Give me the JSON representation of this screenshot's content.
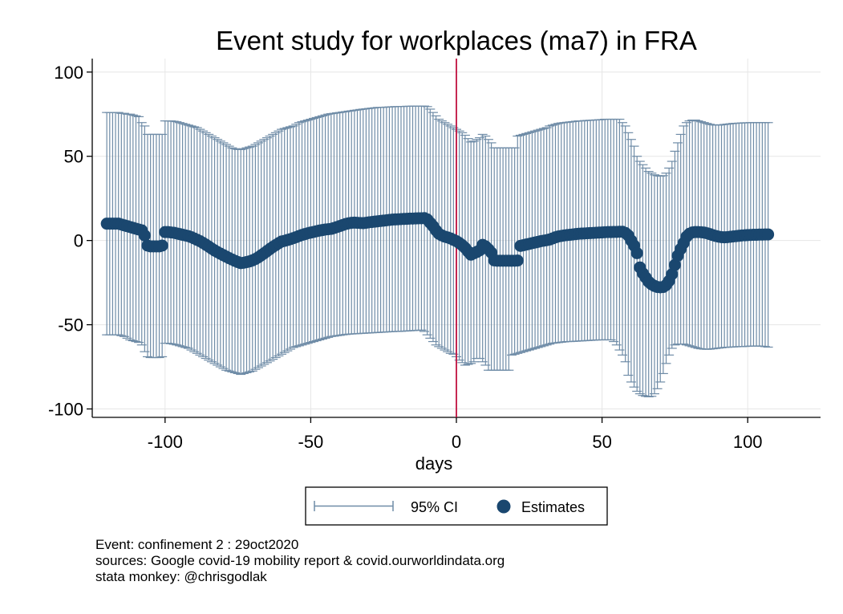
{
  "chart_data": {
    "type": "scatter",
    "title": "Event study for workplaces (ma7) in FRA",
    "xlabel": "days",
    "ylabel": "",
    "xlim": [
      -125,
      125
    ],
    "ylim": [
      -105,
      108
    ],
    "x_ticks": [
      -100,
      -50,
      0,
      50,
      100
    ],
    "x_tick_labels": [
      "-100",
      "-50",
      "0",
      "50",
      "100"
    ],
    "y_ticks": [
      -100,
      -50,
      0,
      50,
      100
    ],
    "y_tick_labels": [
      "-100",
      "-50",
      "0",
      "50",
      "100"
    ],
    "grid": true,
    "event_line_x": 0,
    "legend_position": "bottom",
    "legend": [
      {
        "label": "95% CI",
        "kind": "capped-spike",
        "color": "#6f8ca7"
      },
      {
        "label": "Estimates",
        "kind": "dot",
        "color": "#1a476f"
      }
    ],
    "colors": {
      "estimates": "#1a476f",
      "ci": "#6f8ca7",
      "event_line": "#c0103f",
      "grid": "#e6e6e6"
    },
    "x": [
      -120,
      -119,
      -118,
      -117,
      -116,
      -115,
      -114,
      -113,
      -112,
      -111,
      -110,
      -109,
      -108,
      -107,
      -106,
      -105,
      -104,
      -103,
      -102,
      -101,
      -100,
      -99,
      -98,
      -97,
      -96,
      -95,
      -94,
      -93,
      -92,
      -91,
      -90,
      -89,
      -88,
      -87,
      -86,
      -85,
      -84,
      -83,
      -82,
      -81,
      -80,
      -79,
      -78,
      -77,
      -76,
      -75,
      -74,
      -73,
      -72,
      -71,
      -70,
      -69,
      -68,
      -67,
      -66,
      -65,
      -64,
      -63,
      -62,
      -61,
      -60,
      -59,
      -58,
      -57,
      -56,
      -55,
      -54,
      -53,
      -52,
      -51,
      -50,
      -49,
      -48,
      -47,
      -46,
      -45,
      -44,
      -43,
      -42,
      -41,
      -40,
      -39,
      -38,
      -37,
      -36,
      -35,
      -34,
      -33,
      -32,
      -31,
      -30,
      -29,
      -28,
      -27,
      -26,
      -25,
      -24,
      -23,
      -22,
      -21,
      -20,
      -19,
      -18,
      -17,
      -16,
      -15,
      -14,
      -13,
      -12,
      -11,
      -10,
      -9,
      -8,
      -7,
      -6,
      -5,
      -4,
      -3,
      -2,
      -1,
      0,
      1,
      2,
      3,
      4,
      5,
      6,
      7,
      8,
      9,
      10,
      11,
      12,
      13,
      14,
      15,
      16,
      17,
      18,
      19,
      20,
      21,
      22,
      23,
      24,
      25,
      26,
      27,
      28,
      29,
      30,
      31,
      32,
      33,
      34,
      35,
      36,
      37,
      38,
      39,
      40,
      41,
      42,
      43,
      44,
      45,
      46,
      47,
      48,
      49,
      50,
      51,
      52,
      53,
      54,
      55,
      56,
      57,
      58,
      59,
      60,
      61,
      62,
      63,
      64,
      65,
      66,
      67,
      68,
      69,
      70,
      71,
      72,
      73,
      74,
      75,
      76,
      77,
      78,
      79,
      80,
      81,
      82,
      83,
      84,
      85,
      86,
      87,
      88,
      89,
      90,
      91,
      92,
      93,
      94,
      95,
      96,
      97,
      98,
      99,
      100,
      101,
      102,
      103,
      104,
      105,
      106,
      107
    ],
    "estimates": [
      10,
      10,
      10,
      10,
      10,
      9.5,
      9,
      8.5,
      8,
      7.5,
      7,
      6.5,
      6,
      3,
      -3,
      -3.5,
      -3.5,
      -3.5,
      -3.5,
      -3,
      5,
      5,
      4.8,
      4.6,
      4.2,
      3.8,
      3.4,
      3,
      2.6,
      2,
      1.2,
      0.4,
      -0.4,
      -1.4,
      -2.5,
      -3.6,
      -4.8,
      -5.9,
      -6.9,
      -7.8,
      -8.7,
      -9.6,
      -10.5,
      -11.3,
      -12.1,
      -12.8,
      -13.4,
      -13.2,
      -12.8,
      -12.4,
      -11.8,
      -11,
      -10,
      -8.8,
      -7.6,
      -6.3,
      -5,
      -3.8,
      -2.7,
      -1.6,
      -0.6,
      -0.2,
      0.3,
      0.8,
      1.4,
      2,
      2.7,
      3.3,
      3.8,
      4.3,
      4.7,
      5.1,
      5.5,
      5.9,
      6.2,
      6.5,
      6.7,
      6.9,
      7.4,
      8,
      8.6,
      9.2,
      9.8,
      10.2,
      10.5,
      10.6,
      10.5,
      10.4,
      10.3,
      10.5,
      10.8,
      11,
      11.2,
      11.4,
      11.6,
      11.8,
      12,
      12.2,
      12.4,
      12.5,
      12.6,
      12.7,
      12.8,
      12.9,
      13,
      13,
      13.1,
      13.2,
      13.2,
      13.3,
      12.5,
      10.5,
      8.5,
      6,
      4,
      3,
      2.3,
      1.8,
      1.2,
      0.4,
      -0.4,
      -1.5,
      -2.8,
      -4.4,
      -6.5,
      -8.4,
      -7.6,
      -6.8,
      -5.8,
      -2.6,
      -3.5,
      -5.2,
      -7.2,
      -11.8,
      -12,
      -12,
      -12,
      -12,
      -12,
      -12,
      -12,
      -11.9,
      -3.2,
      -2.8,
      -2.4,
      -2,
      -1.6,
      -1.2,
      -0.8,
      -0.4,
      -0.1,
      0.2,
      0.6,
      1.2,
      1.9,
      2.4,
      2.7,
      3,
      3.2,
      3.4,
      3.6,
      3.8,
      4,
      4.1,
      4.2,
      4.3,
      4.4,
      4.5,
      4.6,
      4.7,
      4.8,
      4.9,
      5,
      5,
      5.1,
      5.1,
      5.2,
      5.2,
      4.5,
      3,
      0,
      -3,
      -7.5,
      -16,
      -19.5,
      -22,
      -24.5,
      -26,
      -27,
      -27.6,
      -27.8,
      -27.6,
      -26.4,
      -24,
      -20,
      -14.5,
      -9,
      -5,
      -1.5,
      2.3,
      4,
      4.8,
      5,
      5,
      4.9,
      4.7,
      4.3,
      3.8,
      3.2,
      2.7,
      2.3,
      2,
      1.9,
      2,
      2.2,
      2.4,
      2.6,
      2.8,
      3,
      3.1,
      3.2,
      3.3,
      3.4,
      3.4,
      3.5,
      3.5,
      3.6,
      3.6,
      3.6,
      3.7,
      3.6,
      3.5,
      3.3,
      3,
      2.6,
      2,
      1.3,
      0.7,
      0.2
    ],
    "ci_upper": [
      76,
      76,
      76,
      76,
      76,
      75.5,
      75.5,
      75,
      75,
      74.5,
      74,
      73.5,
      70,
      68,
      63,
      63,
      63,
      63,
      63,
      63,
      71,
      71,
      71,
      70.8,
      70.5,
      70,
      69.5,
      69,
      68.5,
      68,
      67.5,
      67,
      66,
      65,
      64,
      63,
      62,
      61,
      60,
      59,
      58,
      57,
      56,
      55,
      54.5,
      54,
      54,
      54.5,
      55,
      55.5,
      56,
      57,
      58,
      59,
      60,
      61,
      62,
      63,
      64,
      65,
      66,
      66.5,
      67,
      67.5,
      68,
      69,
      70,
      70.5,
      71,
      71.5,
      72,
      72.5,
      73,
      73.5,
      74,
      74.5,
      75,
      75.3,
      75.5,
      75.8,
      76,
      76.3,
      76.5,
      76.8,
      77,
      77.3,
      77.5,
      77.8,
      78,
      78.2,
      78.4,
      78.6,
      78.8,
      79,
      79,
      79.1,
      79.2,
      79.3,
      79.4,
      79.5,
      79.5,
      79.6,
      79.6,
      79.7,
      79.7,
      79.8,
      79.8,
      79.8,
      79.8,
      79.8,
      79.5,
      78,
      76,
      74,
      72,
      71,
      70,
      69,
      68,
      67,
      66,
      65,
      64,
      62.5,
      60.5,
      58.5,
      59,
      60,
      61,
      63,
      62,
      60,
      58,
      55,
      55,
      55,
      55,
      55,
      55,
      55,
      55,
      62,
      62.5,
      63,
      63.5,
      64,
      64.5,
      65,
      65.5,
      66,
      66.5,
      67,
      68,
      68.5,
      69,
      69.5,
      69.8,
      70,
      70.2,
      70.4,
      70.6,
      70.8,
      71,
      71,
      71.2,
      71.3,
      71.4,
      71.5,
      71.6,
      71.7,
      71.8,
      72,
      72,
      72,
      72,
      72,
      72,
      70,
      68,
      64,
      60,
      56,
      50,
      47,
      45,
      43,
      41,
      40,
      39,
      38.5,
      38.2,
      38.5,
      40,
      43,
      47,
      53,
      58,
      63,
      68,
      70,
      71,
      71.5,
      71.5,
      71,
      70.5,
      70,
      69.5,
      69,
      68.7,
      68.5,
      68.5,
      68.7,
      68.9,
      69.1,
      69.3,
      69.5,
      69.6,
      69.7,
      69.8,
      69.9,
      69.9,
      70,
      70,
      70,
      70,
      70,
      70,
      70,
      69.8,
      69.5,
      69,
      68.5,
      68,
      67,
      66.5,
      66
    ],
    "ci_lower": [
      -56,
      -56,
      -56,
      -56,
      -56,
      -56.5,
      -57,
      -58,
      -59,
      -59.5,
      -60,
      -60.5,
      -62,
      -66,
      -69,
      -69.5,
      -69.5,
      -69.5,
      -69.5,
      -69,
      -61,
      -61,
      -61.3,
      -61.6,
      -62,
      -62.5,
      -63,
      -63.5,
      -64,
      -65,
      -66,
      -67,
      -68,
      -69,
      -70,
      -71,
      -72,
      -73,
      -74,
      -75,
      -76,
      -77,
      -77.5,
      -78,
      -78.5,
      -79,
      -79.5,
      -79,
      -78.5,
      -78,
      -77.5,
      -76.5,
      -75.5,
      -74.5,
      -73.5,
      -72.5,
      -71.5,
      -70.5,
      -69.5,
      -68.5,
      -67.5,
      -66.5,
      -65.5,
      -64.5,
      -63.5,
      -63,
      -62.5,
      -62,
      -61.5,
      -61,
      -60.5,
      -60,
      -59.5,
      -59,
      -58.5,
      -58,
      -57.5,
      -57,
      -56.8,
      -56.5,
      -56.3,
      -56,
      -55.8,
      -55.6,
      -55.5,
      -55.4,
      -55.3,
      -55.2,
      -55.1,
      -55,
      -54.9,
      -54.8,
      -54.7,
      -54.6,
      -54.5,
      -54.4,
      -54.3,
      -54.2,
      -54.1,
      -54,
      -54,
      -53.9,
      -53.8,
      -53.7,
      -53.6,
      -53.5,
      -53.4,
      -53.3,
      -53.2,
      -54,
      -56,
      -58,
      -60,
      -62,
      -63,
      -64,
      -65,
      -66,
      -67,
      -67.5,
      -69,
      -71,
      -72.5,
      -74,
      -73.5,
      -73,
      -72,
      -70,
      -70,
      -72,
      -74,
      -77,
      -77,
      -77,
      -77,
      -77,
      -77,
      -77,
      -77,
      -68,
      -67.5,
      -67,
      -66.5,
      -66,
      -65.5,
      -65,
      -64.5,
      -64,
      -63.5,
      -63,
      -62.5,
      -62,
      -61.5,
      -61,
      -60.8,
      -60.6,
      -60.4,
      -60.2,
      -60,
      -60,
      -59.9,
      -59.8,
      -59.7,
      -59.6,
      -59.5,
      -59.4,
      -59.3,
      -59.2,
      -59.1,
      -59,
      -59,
      -59,
      -59,
      -59,
      -60,
      -62,
      -65,
      -68,
      -72,
      -80,
      -84,
      -87,
      -89.5,
      -91,
      -92,
      -92.5,
      -92.8,
      -92.5,
      -91,
      -88,
      -84,
      -79,
      -73,
      -68,
      -64,
      -62,
      -61.5,
      -61.5,
      -61.5,
      -62,
      -62.5,
      -63,
      -63.5,
      -64,
      -64.3,
      -64.5,
      -64.6,
      -64.5,
      -64.3,
      -64.1,
      -63.9,
      -63.7,
      -63.5,
      -63.4,
      -63.3,
      -63.2,
      -63.1,
      -63,
      -63,
      -62.9,
      -62.8,
      -62.7,
      -62.7,
      -62.6,
      -62.7,
      -62.8,
      -63,
      -63.3,
      -63.7,
      -64.3,
      -65,
      -65.6,
      -66
    ]
  },
  "notes": [
    "Event: confinement 2 : 29oct2020",
    "sources: Google covid-19 mobility report & covid.ourworldindata.org",
    "stata monkey: @chrisgodlak"
  ]
}
